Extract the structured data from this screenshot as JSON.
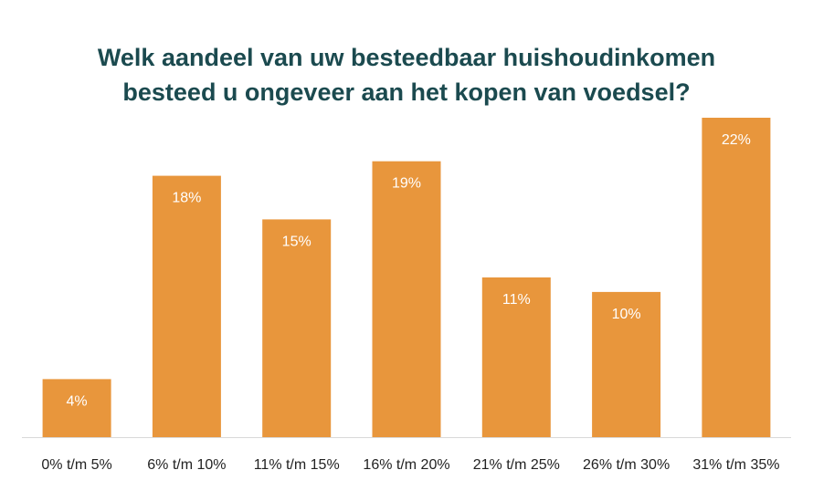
{
  "chart_data": {
    "type": "bar",
    "title_lines": [
      "Welk aandeel van uw besteedbaar huishoudinkomen",
      "besteed u ongeveer aan het kopen van voedsel?"
    ],
    "categories": [
      "0% t/m 5%",
      "6% t/m 10%",
      "11% t/m 15%",
      "16% t/m 20%",
      "21% t/m 25%",
      "26% t/m 30%",
      "31% t/m 35%"
    ],
    "values": [
      4,
      18,
      15,
      19,
      11,
      10,
      22
    ],
    "value_labels": [
      "4%",
      "18%",
      "15%",
      "19%",
      "11%",
      "10%",
      "22%"
    ],
    "ylim": [
      0,
      22
    ],
    "bar_color": "#e8963c",
    "title_color": "#1b4a4f",
    "label_color": "#ffffff",
    "tick_color": "#222222",
    "axis_color": "#d9d9d9",
    "grid": false,
    "legend": false
  }
}
